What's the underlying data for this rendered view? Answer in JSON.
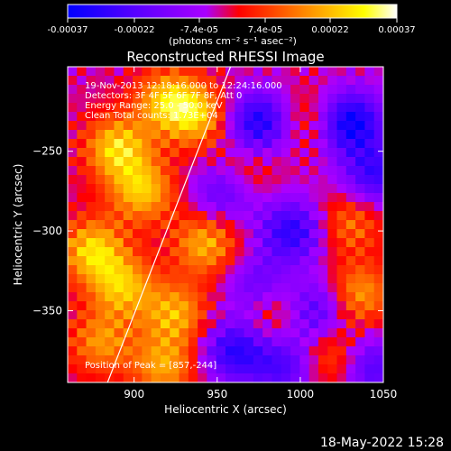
{
  "colorbar": {
    "ticks": [
      "-0.00037",
      "-0.00022",
      "-7.4e-05",
      "7.4e-05",
      "0.00022",
      "0.00037"
    ],
    "tick_values": [
      -0.00037,
      -0.00022,
      -7.4e-05,
      7.4e-05,
      0.00022,
      0.00037
    ],
    "range": [
      -0.00037,
      0.00037
    ],
    "label": "(photons cm⁻² s⁻¹ asec⁻²)",
    "colors": [
      "#0000ff",
      "#5500ff",
      "#aa00ff",
      "#ff0000",
      "#ff8800",
      "#ffff00",
      "#ffffff"
    ]
  },
  "chart_data": {
    "type": "heatmap",
    "title": "Reconstructed RHESSI Image",
    "xlabel": "Heliocentric X (arcsec)",
    "ylabel": "Heliocentric Y (arcsec)",
    "xlim": [
      860,
      1050
    ],
    "ylim": [
      -395,
      -197
    ],
    "x_ticks": [
      900,
      950,
      1000,
      1050
    ],
    "y_ticks": [
      -250,
      -300,
      -350
    ],
    "y_tick_labels": [
      "−250",
      "−300",
      "−350"
    ],
    "annotations": [
      "19-Nov-2013 12:18:16.000 to 12:24:16.000",
      "Detectors: 3F 4F 5F 6F 7F 8F, Att 0",
      "Energy Range: 25.0 - 50.0 keV",
      "Clean    Total counts: 1.73E+04"
    ],
    "peak_label": "Position of Peak = [857,-244]",
    "limb_line": {
      "x": [
        884,
        958
      ],
      "y": [
        -395,
        -197
      ]
    },
    "grid_cols": 34,
    "grid_rows": 35,
    "bright_spots": [
      {
        "x": 890,
        "y": -248,
        "v": 0.72
      },
      {
        "x": 920,
        "y": -218,
        "v": 0.62
      },
      {
        "x": 938,
        "y": -228,
        "v": 0.6
      },
      {
        "x": 905,
        "y": -275,
        "v": 0.65
      },
      {
        "x": 875,
        "y": -312,
        "v": 0.7
      },
      {
        "x": 893,
        "y": -335,
        "v": 0.62
      },
      {
        "x": 943,
        "y": -308,
        "v": 0.6
      },
      {
        "x": 925,
        "y": -352,
        "v": 0.58
      },
      {
        "x": 880,
        "y": -370,
        "v": 0.5
      },
      {
        "x": 918,
        "y": -385,
        "v": 0.55
      },
      {
        "x": 1035,
        "y": -340,
        "v": 0.55
      },
      {
        "x": 1022,
        "y": -380,
        "v": 0.5
      },
      {
        "x": 985,
        "y": -350,
        "v": 0.38
      },
      {
        "x": 1030,
        "y": -295,
        "v": 0.42
      },
      {
        "x": 965,
        "y": -265,
        "v": 0.35
      },
      {
        "x": 1005,
        "y": -230,
        "v": 0.3
      }
    ],
    "dark_spots": [
      {
        "x": 975,
        "y": -232,
        "v": -0.75
      },
      {
        "x": 1030,
        "y": -232,
        "v": -0.85
      },
      {
        "x": 995,
        "y": -300,
        "v": -0.65
      },
      {
        "x": 955,
        "y": -275,
        "v": -0.55
      },
      {
        "x": 1045,
        "y": -265,
        "v": -0.6
      },
      {
        "x": 960,
        "y": -375,
        "v": -0.65
      },
      {
        "x": 1010,
        "y": -350,
        "v": -0.55
      },
      {
        "x": 1040,
        "y": -385,
        "v": -0.6
      },
      {
        "x": 975,
        "y": -335,
        "v": -0.45
      },
      {
        "x": 990,
        "y": -385,
        "v": -0.5
      }
    ]
  },
  "footer": {
    "timestamp": "18-May-2022 15:28"
  }
}
